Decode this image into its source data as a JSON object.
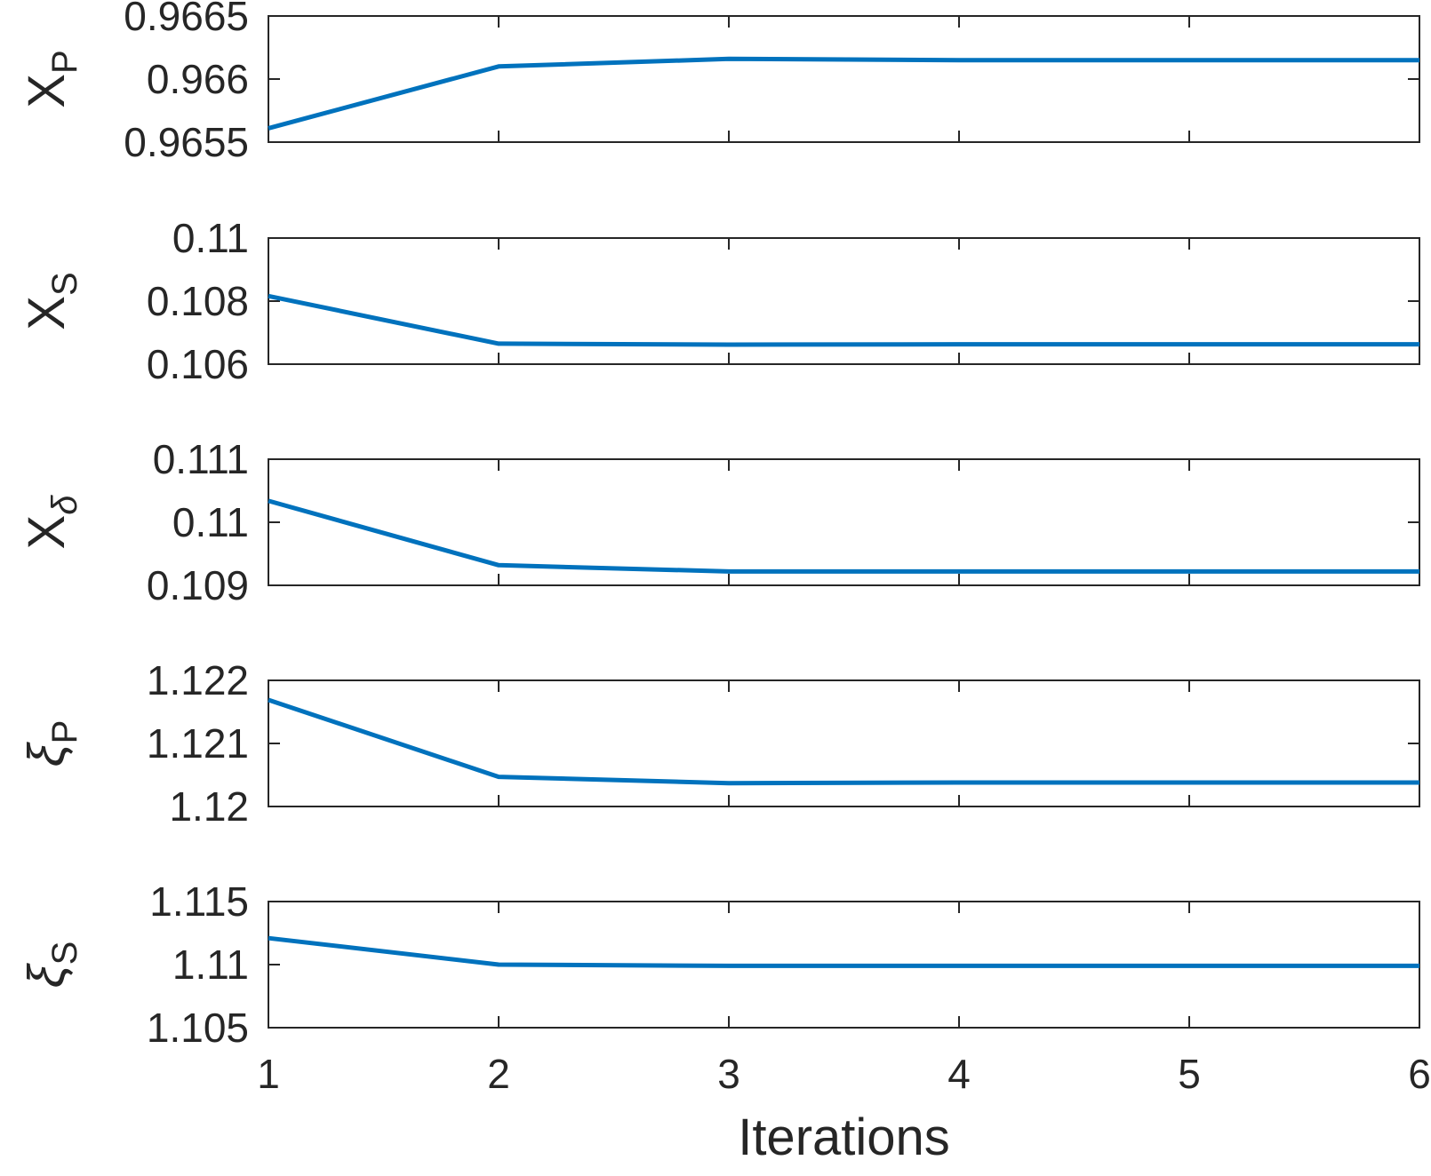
{
  "chart_data": {
    "type": "line",
    "xlabel": "Iterations",
    "x": [
      1,
      2,
      3,
      4,
      5,
      6
    ],
    "xlim": [
      1,
      6
    ],
    "xticks": [
      "1",
      "2",
      "3",
      "4",
      "5",
      "6"
    ],
    "series_color": "#0072BD",
    "grid": false,
    "subplots": [
      {
        "ylabel_main": "X",
        "ylabel_sub": "P",
        "ylim": [
          0.9655,
          0.9665
        ],
        "yticks": [
          0.9655,
          0.966,
          0.9665
        ],
        "yticklabels": [
          "0.9655",
          "0.966",
          "0.9665"
        ],
        "values": [
          0.96561,
          0.9661,
          0.96616,
          0.96615,
          0.96615,
          0.96615
        ]
      },
      {
        "ylabel_main": "X",
        "ylabel_sub": "S",
        "ylim": [
          0.106,
          0.11
        ],
        "yticks": [
          0.106,
          0.108,
          0.11
        ],
        "yticklabels": [
          "0.106",
          "0.108",
          "0.11"
        ],
        "values": [
          0.10816,
          0.10665,
          0.10662,
          0.10663,
          0.10663,
          0.10663
        ]
      },
      {
        "ylabel_main": "X",
        "ylabel_sub": "δ",
        "ylim": [
          0.109,
          0.111
        ],
        "yticks": [
          0.109,
          0.11,
          0.111
        ],
        "yticklabels": [
          "0.109",
          "0.11",
          "0.111"
        ],
        "values": [
          0.11034,
          0.10932,
          0.10922,
          0.10922,
          0.10922,
          0.10922
        ]
      },
      {
        "ylabel_main": "ξ",
        "ylabel_sub": "P",
        "ylim": [
          1.12,
          1.122
        ],
        "yticks": [
          1.12,
          1.121,
          1.122
        ],
        "yticklabels": [
          "1.12",
          "1.121",
          "1.122"
        ],
        "values": [
          1.12169,
          1.12047,
          1.12037,
          1.12038,
          1.12038,
          1.12038
        ]
      },
      {
        "ylabel_main": "ξ",
        "ylabel_sub": "S",
        "ylim": [
          1.105,
          1.115
        ],
        "yticks": [
          1.105,
          1.11,
          1.115
        ],
        "yticklabels": [
          "1.105",
          "1.11",
          "1.115"
        ],
        "values": [
          1.1121,
          1.11,
          1.1099,
          1.1099,
          1.1099,
          1.1099
        ]
      }
    ]
  }
}
